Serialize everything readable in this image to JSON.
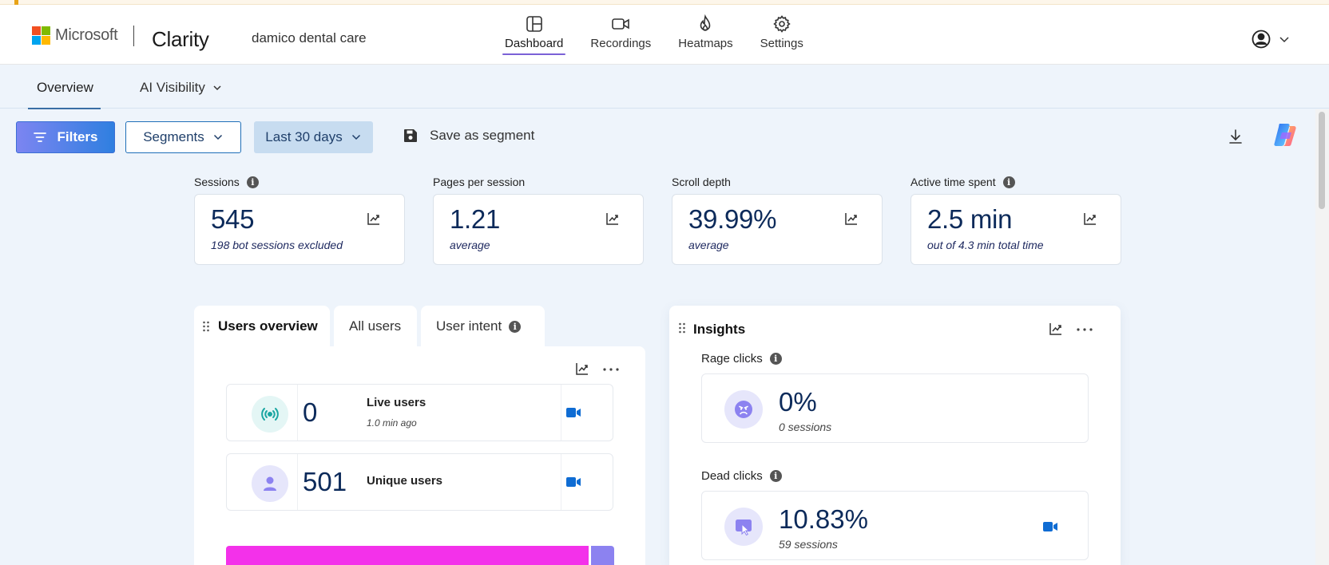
{
  "brand": {
    "company": "Microsoft",
    "product": "Clarity",
    "project": "damico dental care",
    "logo_colors": [
      "#f25022",
      "#7fba00",
      "#00a4ef",
      "#ffb900"
    ]
  },
  "main_nav": [
    {
      "label": "Dashboard",
      "icon": "dashboard-icon",
      "active": true
    },
    {
      "label": "Recordings",
      "icon": "camera-icon",
      "active": false
    },
    {
      "label": "Heatmaps",
      "icon": "flame-icon",
      "active": false
    },
    {
      "label": "Settings",
      "icon": "gear-icon",
      "active": false
    }
  ],
  "account": {
    "icon": "user-circle-icon"
  },
  "sub_nav": {
    "overview": "Overview",
    "ai_visibility": "AI Visibility"
  },
  "toolbar": {
    "filters": "Filters",
    "segments": "Segments",
    "date_range": "Last 30 days",
    "save_segment": "Save as segment"
  },
  "metrics": [
    {
      "label": "Sessions",
      "value": "545",
      "sub": "198 bot sessions excluded",
      "info": true
    },
    {
      "label": "Pages per session",
      "value": "1.21",
      "sub": "average",
      "info": false
    },
    {
      "label": "Scroll depth",
      "value": "39.99%",
      "sub": "average",
      "info": false
    },
    {
      "label": "Active time spent",
      "value": "2.5 min",
      "sub": "out of 4.3 min total time",
      "info": true
    }
  ],
  "users_panel": {
    "tabs": {
      "users_overview": "Users overview",
      "all_users": "All users",
      "user_intent": "User intent"
    },
    "live": {
      "value": "0",
      "label": "Live users",
      "ago": "1.0 min ago"
    },
    "unique": {
      "value": "501",
      "label": "Unique users"
    },
    "distribution_bar": {
      "segment_1_fraction": 0.94,
      "segment_2_fraction": 0.06,
      "colors": [
        "#f331ea",
        "#8c82f0"
      ]
    }
  },
  "insights_panel": {
    "title": "Insights",
    "rage": {
      "label": "Rage clicks",
      "value": "0%",
      "sub": "0 sessions"
    },
    "dead": {
      "label": "Dead clicks",
      "value": "10.83%",
      "sub": "59 sessions"
    }
  },
  "colors": {
    "accent": "#7a61d6",
    "primary": "#1f6fb8",
    "navy_text": "#0c2a5a",
    "page_bg": "#eef4fb",
    "video_icon": "#0f6cd3"
  }
}
